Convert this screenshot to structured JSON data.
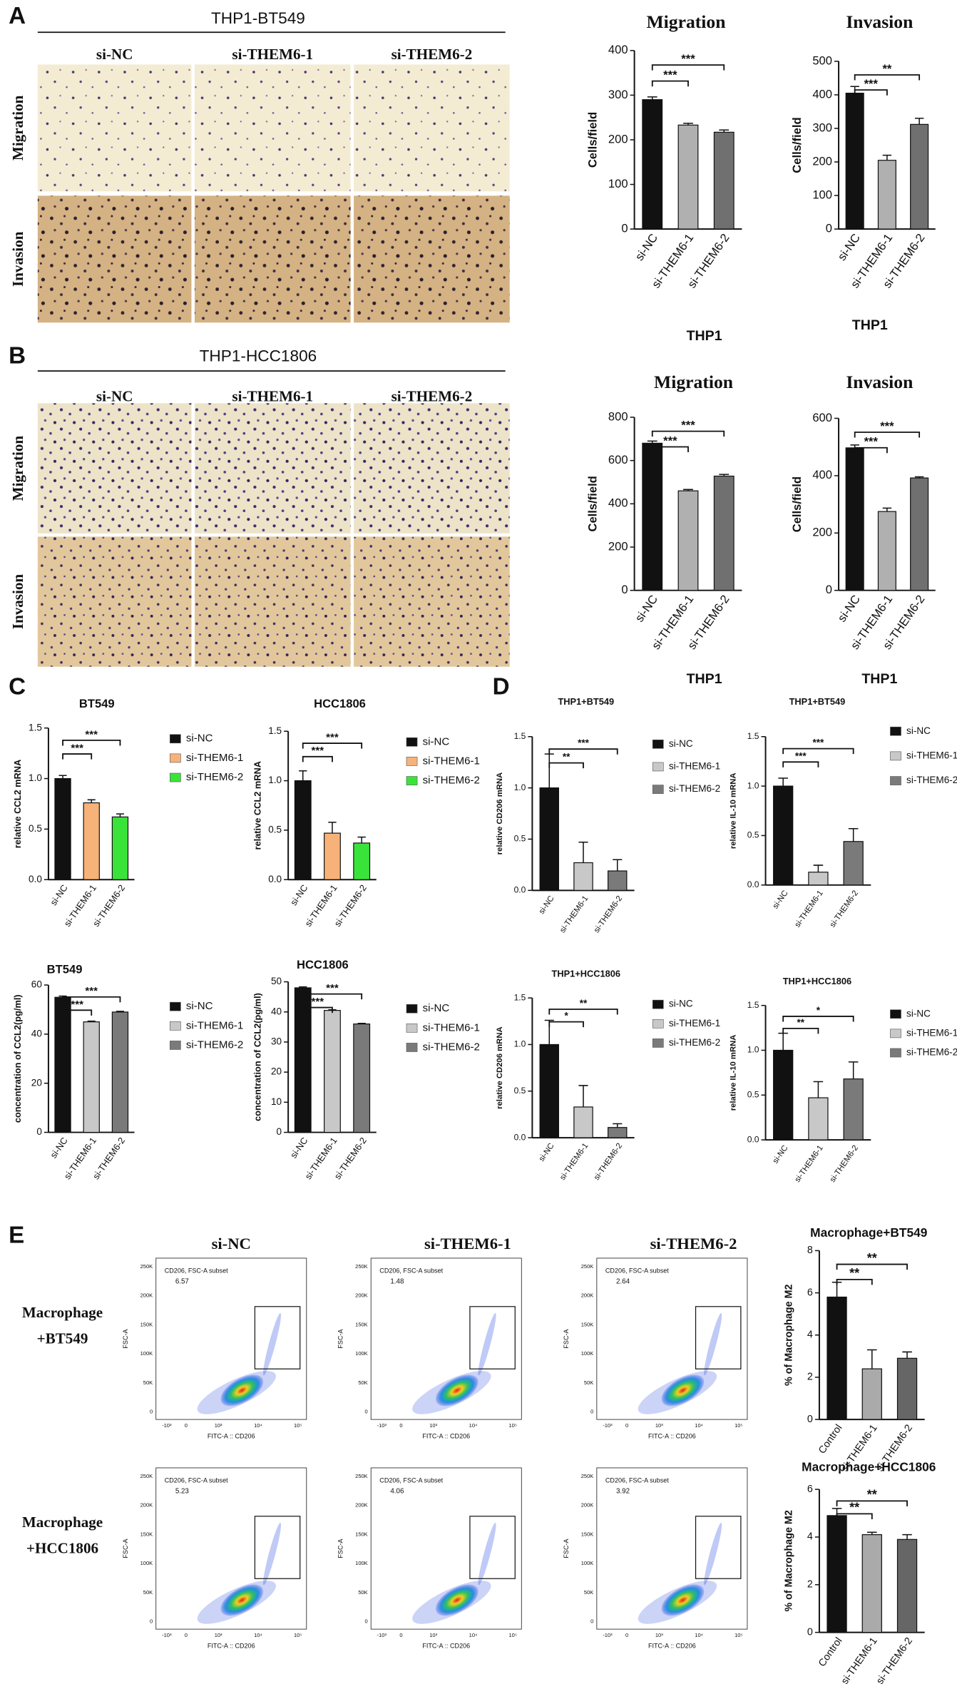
{
  "panels": [
    "A",
    "B",
    "C",
    "D",
    "E"
  ],
  "panel_a": {
    "title": "THP1-BT549",
    "columns": [
      "si-NC",
      "si-THEM6-1",
      "si-THEM6-2"
    ],
    "rows": [
      "Migration",
      "Invasion"
    ]
  },
  "panel_b": {
    "title": "THP1-HCC1806",
    "columns": [
      "si-NC",
      "si-THEM6-1",
      "si-THEM6-2"
    ],
    "rows": [
      "Migration",
      "Invasion"
    ]
  },
  "flow": {
    "columns": [
      "si-NC",
      "si-THEM6-1",
      "si-THEM6-2"
    ],
    "rows": [
      [
        "Macrophage",
        "+BT549"
      ],
      [
        "Macrophage",
        "+HCC1806"
      ]
    ],
    "gate_label": "CD206, FSC-A subset",
    "percentages": [
      6.57,
      1.48,
      2.64,
      5.23,
      4.06,
      3.92
    ],
    "y_axis": "FSC-A",
    "x_axis": "FITC-A :: CD206",
    "y_ticks": [
      "250K",
      "200K",
      "150K",
      "100K",
      "50K",
      "0"
    ],
    "x_ticks": [
      "-10³",
      "0",
      "10³",
      "10⁴",
      "10⁵"
    ]
  },
  "chart_data": [
    {
      "type": "bar",
      "title": "Migration",
      "ylabel": "Cells/field",
      "xlabel": "THP1",
      "categories": [
        "si-NC",
        "si-THEM6-1",
        "si-THEM6-2"
      ],
      "values": [
        290,
        233,
        217
      ],
      "errors": [
        6,
        4,
        5
      ],
      "colors": [
        "#111111",
        "#b0b0b0",
        "#707070"
      ],
      "ylim": [
        0,
        400
      ],
      "yticks": [
        0,
        100,
        200,
        300,
        400
      ],
      "significance": [
        "***",
        "***"
      ],
      "legend": false
    },
    {
      "type": "bar",
      "title": "Invasion",
      "ylabel": "Cells/field",
      "xlabel": "THP1",
      "categories": [
        "si-NC",
        "si-THEM6-1",
        "si-THEM6-2"
      ],
      "values": [
        405,
        205,
        312
      ],
      "errors": [
        20,
        15,
        18
      ],
      "colors": [
        "#111111",
        "#b0b0b0",
        "#707070"
      ],
      "ylim": [
        0,
        500
      ],
      "yticks": [
        0,
        100,
        200,
        300,
        400,
        500
      ],
      "significance": [
        "***",
        "**"
      ],
      "legend": false
    },
    {
      "type": "bar",
      "title": "Migration",
      "ylabel": "Cells/field",
      "xlabel": "THP1",
      "categories": [
        "si-NC",
        "si-THEM6-1",
        "si-THEM6-2"
      ],
      "values": [
        680,
        460,
        528
      ],
      "errors": [
        10,
        6,
        8
      ],
      "colors": [
        "#111111",
        "#b0b0b0",
        "#707070"
      ],
      "ylim": [
        0,
        800
      ],
      "yticks": [
        0,
        200,
        400,
        600,
        800
      ],
      "significance": [
        "***",
        "***"
      ],
      "legend": false
    },
    {
      "type": "bar",
      "title": "Invasion",
      "ylabel": "Cells/field",
      "xlabel": "THP1",
      "categories": [
        "si-NC",
        "si-THEM6-1",
        "si-THEM6-2"
      ],
      "values": [
        497,
        275,
        392
      ],
      "errors": [
        10,
        12,
        4
      ],
      "colors": [
        "#111111",
        "#b0b0b0",
        "#707070"
      ],
      "ylim": [
        0,
        600
      ],
      "yticks": [
        0,
        200,
        400,
        600
      ],
      "significance": [
        "***",
        "***"
      ],
      "legend": false
    },
    {
      "type": "bar",
      "title": "BT549",
      "ylabel": "relative CCL2 mRNA",
      "categories": [
        "si-NC",
        "si-THEM6-1",
        "si-THEM6-2"
      ],
      "values": [
        1.0,
        0.76,
        0.62
      ],
      "errors": [
        0.03,
        0.03,
        0.03
      ],
      "colors": [
        "#111111",
        "#f7b27a",
        "#3ae33a"
      ],
      "ylim": [
        0,
        1.5
      ],
      "yticks": [
        {
          "value": 0,
          "label": "0.0"
        },
        {
          "value": 0.5,
          "label": "0.5"
        },
        {
          "value": 1,
          "label": "1.0"
        },
        {
          "value": 1.5,
          "label": "1.5"
        }
      ],
      "significance": [
        "***",
        "***"
      ],
      "legend": true
    },
    {
      "type": "bar",
      "title": "HCC1806",
      "ylabel": "relative CCL2 mRNA",
      "categories": [
        "si-NC",
        "si-THEM6-1",
        "si-THEM6-2"
      ],
      "values": [
        1.0,
        0.47,
        0.37
      ],
      "errors": [
        0.1,
        0.11,
        0.06
      ],
      "colors": [
        "#111111",
        "#f7b27a",
        "#3ae33a"
      ],
      "ylim": [
        0,
        1.5
      ],
      "yticks": [
        {
          "value": 0,
          "label": "0.0"
        },
        {
          "value": 0.5,
          "label": "0.5"
        },
        {
          "value": 1,
          "label": "1.0"
        },
        {
          "value": 1.5,
          "label": "1.5"
        }
      ],
      "significance": [
        "***",
        "***"
      ],
      "legend": true
    },
    {
      "type": "bar",
      "title": "BT549",
      "ylabel": "concentration of CCL2(pg/ml)",
      "categories": [
        "si-NC",
        "si-THEM6-1",
        "si-THEM6-2"
      ],
      "values": [
        55,
        45,
        49
      ],
      "errors": [
        0.5,
        0.3,
        0.3
      ],
      "colors": [
        "#111111",
        "#c8c8c8",
        "#7a7a7a"
      ],
      "ylim": [
        0,
        60
      ],
      "yticks": [
        0,
        20,
        40,
        60
      ],
      "significance": [
        "***",
        "***"
      ],
      "legend": true
    },
    {
      "type": "bar",
      "title": "HCC1806",
      "ylabel": "concentration of CCL2(pg/ml)",
      "categories": [
        "si-NC",
        "si-THEM6-1",
        "si-THEM6-2"
      ],
      "values": [
        48,
        40.5,
        36
      ],
      "errors": [
        0.3,
        0.2,
        0.2
      ],
      "colors": [
        "#111111",
        "#c8c8c8",
        "#7a7a7a"
      ],
      "ylim": [
        0,
        50
      ],
      "yticks": [
        0,
        10,
        20,
        30,
        40,
        50
      ],
      "significance": [
        "***",
        "***"
      ],
      "legend": true
    },
    {
      "type": "bar",
      "title": "THP1+BT549",
      "ylabel": "relative CD206 mRNA",
      "categories": [
        "si-NC",
        "si-THEM6-1",
        "si-THEM6-2"
      ],
      "values": [
        1.0,
        0.27,
        0.19
      ],
      "errors": [
        0.33,
        0.2,
        0.11
      ],
      "colors": [
        "#111111",
        "#c8c8c8",
        "#7a7a7a"
      ],
      "ylim": [
        0,
        1.5
      ],
      "yticks": [
        {
          "value": 0,
          "label": "0.0"
        },
        {
          "value": 0.5,
          "label": "0.5"
        },
        {
          "value": 1,
          "label": "1.0"
        },
        {
          "value": 1.5,
          "label": "1.5"
        }
      ],
      "significance": [
        "**",
        "***"
      ],
      "legend": true
    },
    {
      "type": "bar",
      "title": "THP1+BT549",
      "ylabel": "relative IL-10 mRNA",
      "categories": [
        "si-NC",
        "si-THEM6-1",
        "si-THEM6-2"
      ],
      "values": [
        1.0,
        0.13,
        0.44
      ],
      "errors": [
        0.08,
        0.07,
        0.13
      ],
      "colors": [
        "#111111",
        "#c8c8c8",
        "#7a7a7a"
      ],
      "ylim": [
        0,
        1.5
      ],
      "yticks": [
        {
          "value": 0,
          "label": "0.0"
        },
        {
          "value": 0.5,
          "label": "0.5"
        },
        {
          "value": 1,
          "label": "1.0"
        },
        {
          "value": 1.5,
          "label": "1.5"
        }
      ],
      "significance": [
        "***",
        "***"
      ],
      "legend": true
    },
    {
      "type": "bar",
      "title": "THP1+HCC1806",
      "ylabel": "relative CD206 mRNA",
      "categories": [
        "si-NC",
        "si-THEM6-1",
        "si-THEM6-2"
      ],
      "values": [
        1.0,
        0.33,
        0.11
      ],
      "errors": [
        0.26,
        0.23,
        0.04
      ],
      "colors": [
        "#111111",
        "#c8c8c8",
        "#7a7a7a"
      ],
      "ylim": [
        0,
        1.5
      ],
      "yticks": [
        {
          "value": 0,
          "label": "0.0"
        },
        {
          "value": 0.5,
          "label": "0.5"
        },
        {
          "value": 1,
          "label": "1.0"
        },
        {
          "value": 1.5,
          "label": "1.5"
        }
      ],
      "significance": [
        "*",
        "**"
      ],
      "legend": true
    },
    {
      "type": "bar",
      "title": "THP1+HCC1806",
      "ylabel": "relative IL-10 mRNA",
      "categories": [
        "si-NC",
        "si-THEM6-1",
        "si-THEM6-2"
      ],
      "values": [
        1.0,
        0.47,
        0.68
      ],
      "errors": [
        0.19,
        0.18,
        0.19
      ],
      "colors": [
        "#111111",
        "#c8c8c8",
        "#7a7a7a"
      ],
      "ylim": [
        0,
        1.5
      ],
      "yticks": [
        {
          "value": 0,
          "label": "0.0"
        },
        {
          "value": 0.5,
          "label": "0.5"
        },
        {
          "value": 1,
          "label": "1.0"
        },
        {
          "value": 1.5,
          "label": "1.5"
        }
      ],
      "significance": [
        "**",
        "*"
      ],
      "legend": true
    },
    {
      "type": "bar",
      "title": "Macrophage+BT549",
      "ylabel": "% of Macrophage M2",
      "categories": [
        "Control",
        "si-THEM6-1",
        "si-THEM6-2"
      ],
      "values": [
        5.8,
        2.4,
        2.9
      ],
      "errors": [
        0.7,
        0.9,
        0.3
      ],
      "colors": [
        "#111111",
        "#aaaaaa",
        "#666666"
      ],
      "ylim": [
        0,
        8
      ],
      "yticks": [
        0,
        2,
        4,
        6,
        8
      ],
      "significance": [
        "**",
        "**"
      ],
      "legend": false
    },
    {
      "type": "bar",
      "title": "Macrophage+HCC1806",
      "ylabel": "% of Macrophage M2",
      "categories": [
        "Control",
        "si-THEM6-1",
        "si-THEM6-2"
      ],
      "values": [
        4.9,
        4.1,
        3.9
      ],
      "errors": [
        0.3,
        0.1,
        0.2
      ],
      "colors": [
        "#111111",
        "#aaaaaa",
        "#666666"
      ],
      "ylim": [
        0,
        6
      ],
      "yticks": [
        0,
        2,
        4,
        6
      ],
      "significance": [
        "**",
        "**"
      ],
      "legend": false
    }
  ]
}
